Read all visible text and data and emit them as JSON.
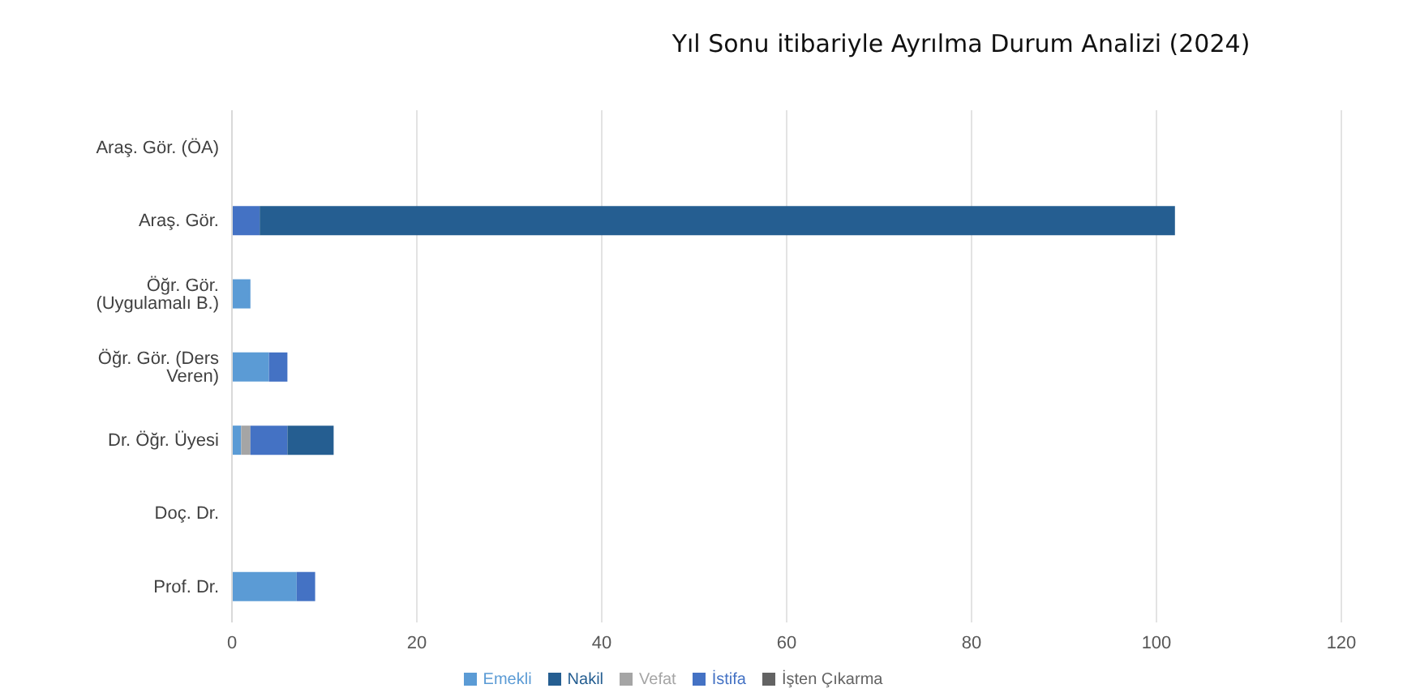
{
  "chart_data": {
    "type": "bar",
    "title": "Yıl Sonu itibariyle Ayrılma Durum Analizi (2024)",
    "orientation": "horizontal",
    "stacked": true,
    "categories": [
      "Araş. Gör. (ÖA)",
      "Araş. Gör.",
      "Öğr. Gör. (Uygulamalı B.)",
      "Öğr. Gör. (Ders Veren)",
      "Dr. Öğr. Üyesi",
      "Doç. Dr.",
      "Prof. Dr."
    ],
    "series": [
      {
        "name": "Emekli",
        "color": "#5b9bd5",
        "values": [
          0,
          0,
          2,
          4,
          1,
          0,
          7
        ]
      },
      {
        "name": "Vefat",
        "color": "#a5a5a5",
        "values": [
          0,
          0,
          0,
          0,
          1,
          0,
          0
        ]
      },
      {
        "name": "İstifa",
        "color": "#4472c4",
        "values": [
          0,
          3,
          0,
          2,
          4,
          0,
          2
        ]
      },
      {
        "name": "Nakil",
        "color": "#255e91",
        "values": [
          0,
          99,
          0,
          0,
          5,
          0,
          0
        ]
      },
      {
        "name": "İşten Çıkarma",
        "color": "#636363",
        "values": [
          0,
          0,
          0,
          0,
          0,
          0,
          0
        ]
      }
    ],
    "xlim": [
      0,
      120
    ],
    "xticks": [
      0,
      20,
      40,
      60,
      80,
      100,
      120
    ],
    "grid": "x",
    "legend": "bottom"
  }
}
